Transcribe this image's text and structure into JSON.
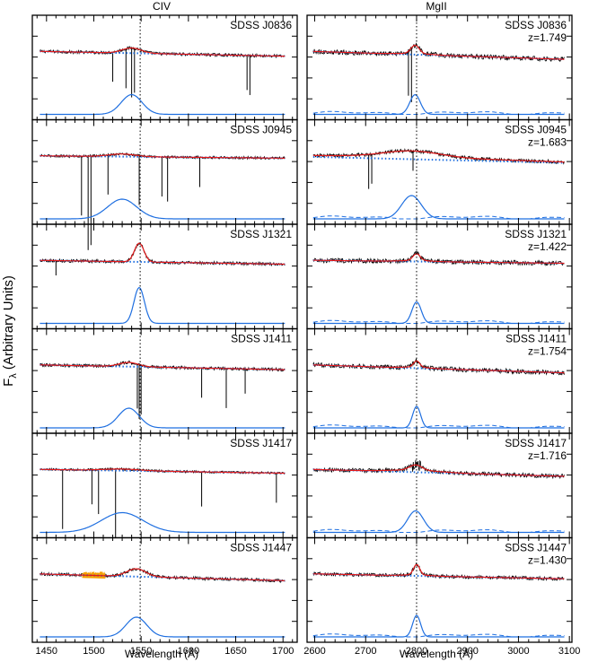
{
  "chart_data": {
    "type": "line",
    "ylabel": "F_λ (Arbitrary Units)",
    "ylabel_main": "F",
    "ylabel_sub": "λ",
    "ylabel_rest": " (Arbitrary Units)",
    "colors": {
      "spectrum": "#000000",
      "fit": "#e41a1c",
      "continuum": "#1f6fe0",
      "broad_line": "#1f6fe0",
      "absorption_mask": "#f5a000"
    },
    "panels": [
      {
        "column_title": "CIV",
        "xlabel": "Wavelength (Å)",
        "xlim": [
          1435,
          1715
        ],
        "xticks": [
          "1450",
          "1500",
          "1550",
          "1600",
          "1650",
          "1700"
        ],
        "line_center": 1549,
        "objects": [
          {
            "name": "SDSS J0836",
            "redshift": ""
          },
          {
            "name": "SDSS J0945",
            "redshift": ""
          },
          {
            "name": "SDSS J1321",
            "redshift": ""
          },
          {
            "name": "SDSS J1411",
            "redshift": ""
          },
          {
            "name": "SDSS J1417",
            "redshift": ""
          },
          {
            "name": "SDSS J1447",
            "redshift": ""
          }
        ]
      },
      {
        "column_title": "MgII",
        "xlabel": "Wavelength (Å)",
        "xlim": [
          2585,
          3105
        ],
        "xticks": [
          "2600",
          "2700",
          "2800",
          "2900",
          "3000",
          "3100"
        ],
        "line_center": 2800,
        "objects": [
          {
            "name": "SDSS J0836",
            "redshift": "z=1.749"
          },
          {
            "name": "SDSS J0945",
            "redshift": "z=1.683"
          },
          {
            "name": "SDSS J1321",
            "redshift": "z=1.422"
          },
          {
            "name": "SDSS J1411",
            "redshift": "z=1.754"
          },
          {
            "name": "SDSS J1417",
            "redshift": "z=1.716"
          },
          {
            "name": "SDSS J1447",
            "redshift": "z=1.430"
          }
        ]
      }
    ]
  }
}
